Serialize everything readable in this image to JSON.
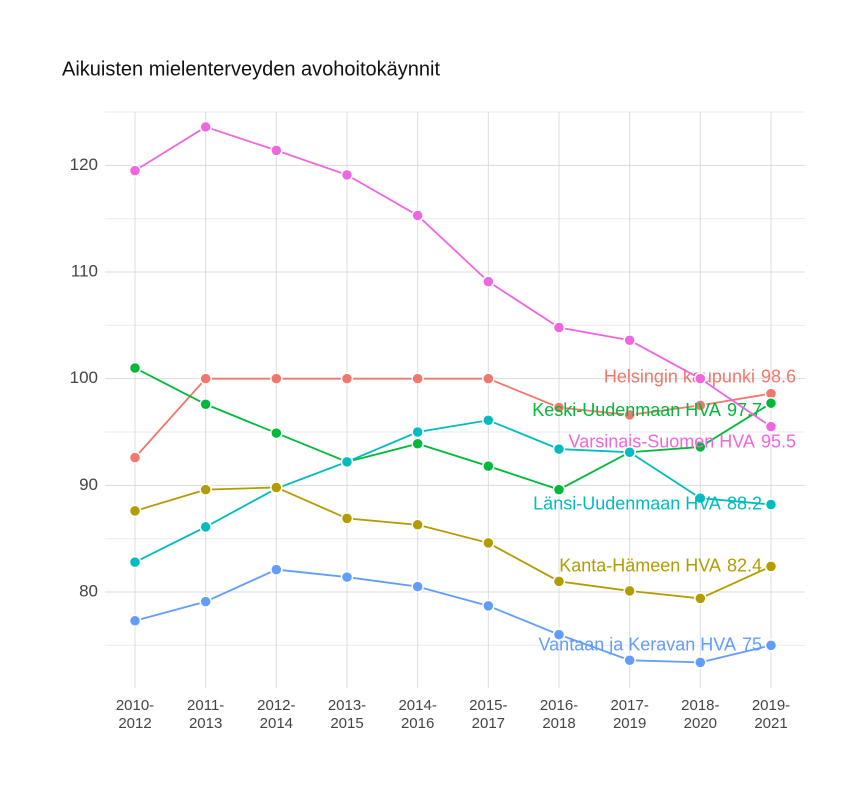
{
  "chart_data": {
    "type": "line",
    "title": "Aikuisten mielenterveyden avohoitokäynnit",
    "categories": [
      "2010-2012",
      "2011-2013",
      "2012-2014",
      "2013-2015",
      "2014-2016",
      "2015-2017",
      "2016-2018",
      "2017-2019",
      "2018-2020",
      "2019-2021"
    ],
    "ylim": [
      71,
      125
    ],
    "yticks": [
      80,
      90,
      100,
      110,
      120
    ],
    "minor_yticks": [
      75,
      85,
      95,
      105,
      115,
      125
    ],
    "grid": true,
    "series": [
      {
        "name": "Helsingin kaupunki",
        "color": "#f0776c",
        "values": [
          92.6,
          100,
          100,
          100,
          100,
          100,
          97.3,
          96.6,
          97.5,
          98.6
        ]
      },
      {
        "name": "Keski-Uudenmaan HVA",
        "color": "#00b93a",
        "values": [
          101.0,
          97.6,
          94.9,
          92.2,
          93.9,
          91.8,
          89.6,
          93.1,
          93.6,
          97.7
        ]
      },
      {
        "name": "Varsinais-Suomen HVA",
        "color": "#f066e0",
        "values": [
          119.5,
          123.6,
          121.4,
          119.1,
          115.3,
          109.1,
          104.8,
          103.6,
          100.0,
          95.5
        ]
      },
      {
        "name": "Länsi-Uudenmaan HVA",
        "color": "#00bcc0",
        "values": [
          82.8,
          86.1,
          89.7,
          92.2,
          95.0,
          96.1,
          93.4,
          93.1,
          88.8,
          88.2
        ]
      },
      {
        "name": "Kanta-Hämeen HVA",
        "color": "#b39c00",
        "values": [
          87.6,
          89.6,
          89.8,
          86.9,
          86.3,
          84.6,
          81.0,
          80.1,
          79.4,
          82.4
        ]
      },
      {
        "name": "Vantaan ja Keravan HVA",
        "color": "#619cff",
        "values": [
          77.3,
          79.1,
          82.1,
          81.4,
          80.5,
          78.7,
          76.0,
          73.6,
          73.4,
          75
        ]
      }
    ]
  }
}
